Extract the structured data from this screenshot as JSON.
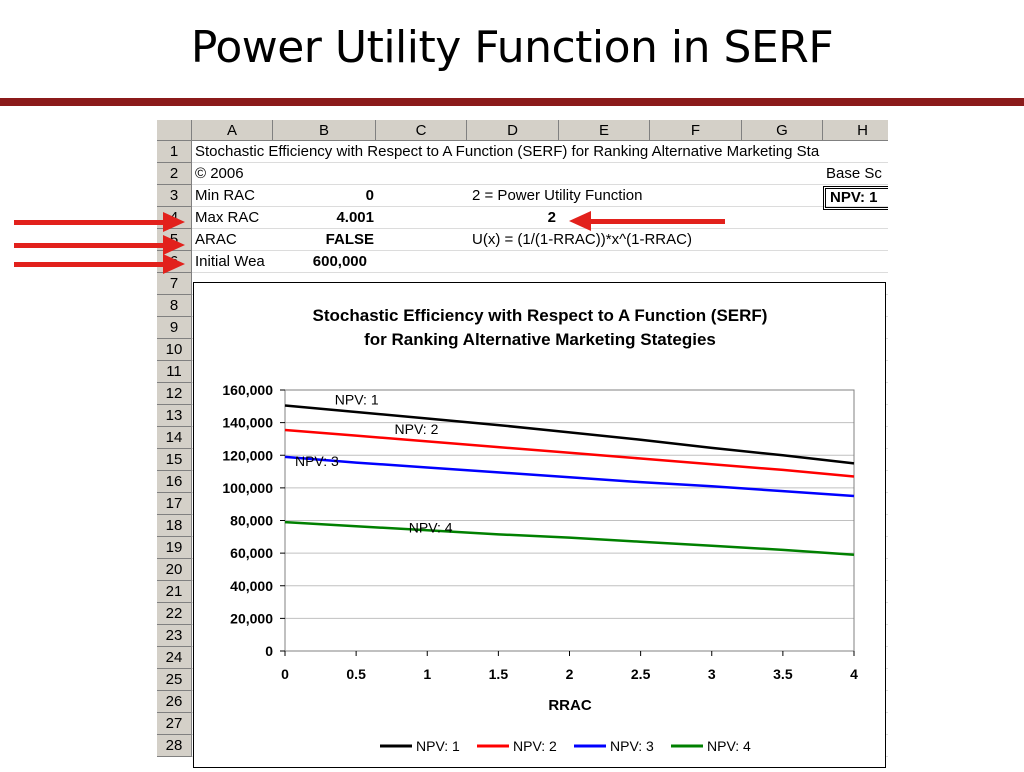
{
  "slide": {
    "title": "Power Utility Function in SERF"
  },
  "sheet": {
    "columns": [
      "A",
      "B",
      "C",
      "D",
      "E",
      "F",
      "G",
      "H"
    ],
    "rows": [
      "1",
      "2",
      "3",
      "4",
      "5",
      "6",
      "7",
      "8",
      "9",
      "10",
      "11",
      "12",
      "13",
      "14",
      "15",
      "16",
      "17",
      "18",
      "19",
      "20",
      "21",
      "22",
      "23",
      "24",
      "25",
      "26",
      "27",
      "28"
    ],
    "cells": {
      "a1": "Stochastic Efficiency with Respect to A Function (SERF) for Ranking Alternative Marketing Sta",
      "a2": "© 2006",
      "h2": "Base Sc",
      "a3": "Min RAC",
      "b3": "0",
      "d3": "2 = Power Utility Function",
      "h3": "NPV: 1",
      "a4": "Max RAC",
      "b4": "4.001",
      "d4": "2",
      "a5": "ARAC",
      "b5": "FALSE",
      "d5": "U(x) = (1/(1-RRAC))*x^(1-RRAC)",
      "a6": "Initial Wea",
      "b6": "600,000"
    }
  },
  "colors": {
    "arrow": "#e2211c",
    "title_rule": "#8b1a1a"
  },
  "chart_data": {
    "type": "line",
    "title": "Stochastic Efficiency with Respect to A Function (SERF)",
    "subtitle": "for Ranking Alternative Marketing Stategies",
    "xlabel": "RRAC",
    "ylabel": "",
    "x": [
      0,
      0.5,
      1,
      1.5,
      2,
      2.5,
      3,
      3.5,
      4
    ],
    "xticks": [
      "0",
      "0.5",
      "1",
      "1.5",
      "2",
      "2.5",
      "3",
      "3.5",
      "4"
    ],
    "yticks": [
      "0",
      "20,000",
      "40,000",
      "60,000",
      "80,000",
      "100,000",
      "120,000",
      "140,000",
      "160,000"
    ],
    "xlim": [
      0,
      4
    ],
    "ylim": [
      0,
      160000
    ],
    "grid": true,
    "legend": "bottom",
    "series": [
      {
        "name": "NPV: 1",
        "color": "#000000",
        "values": [
          150500,
          146500,
          142500,
          138500,
          134000,
          129500,
          124500,
          120000,
          115000
        ],
        "label_at": [
          0.35,
          151000
        ]
      },
      {
        "name": "NPV: 2",
        "color": "#ff0000",
        "values": [
          135500,
          132000,
          128500,
          125000,
          121500,
          118000,
          114500,
          111000,
          107000
        ],
        "label_at": [
          0.77,
          133000
        ]
      },
      {
        "name": "NPV: 3",
        "color": "#0000ff",
        "values": [
          119000,
          115500,
          112500,
          109500,
          106500,
          103500,
          101000,
          98000,
          95000
        ],
        "label_at": [
          0.07,
          113500
        ]
      },
      {
        "name": "NPV: 4",
        "color": "#008000",
        "values": [
          79000,
          76500,
          74000,
          71500,
          69500,
          67000,
          64500,
          62000,
          59000
        ],
        "label_at": [
          0.87,
          72500
        ]
      }
    ]
  }
}
